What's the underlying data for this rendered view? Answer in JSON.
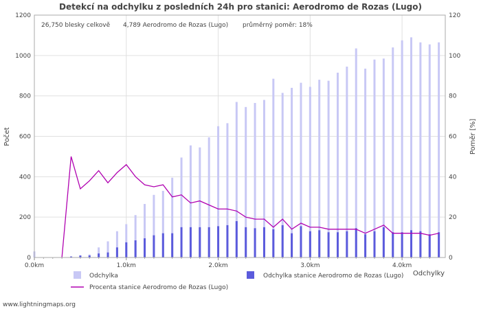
{
  "chart_data": {
    "type": "bar+line",
    "title": "Detekcí na odchylku z posledních 24h pro stanici: Aerodromo de Rozas (Lugo)",
    "info": {
      "total": "26,750 blesky celkově",
      "station": "4,789 Aerodromo de Rozas (Lugo)",
      "ratio": "průměrný poměr: 18%"
    },
    "ylabel_left": "Počet",
    "ylabel_right": "Poměr [%]",
    "xlabel": "Odchylky",
    "ylim_left": [
      0,
      1200
    ],
    "ylim_right": [
      0,
      120
    ],
    "yticks_left": [
      0,
      200,
      400,
      600,
      800,
      1000,
      1200
    ],
    "yticks_right": [
      0,
      20,
      40,
      60,
      80,
      100,
      120
    ],
    "xticks": [
      {
        "km": 0.0,
        "label": "0.0km"
      },
      {
        "km": 1.0,
        "label": "1.0km"
      },
      {
        "km": 2.0,
        "label": "2.0km"
      },
      {
        "km": 3.0,
        "label": "3.0km"
      },
      {
        "km": 4.0,
        "label": "4.0km"
      }
    ],
    "x_km": [
      0.0,
      0.1,
      0.2,
      0.3,
      0.4,
      0.5,
      0.6,
      0.7,
      0.8,
      0.9,
      1.0,
      1.1,
      1.2,
      1.3,
      1.4,
      1.5,
      1.6,
      1.7,
      1.8,
      1.9,
      2.0,
      2.1,
      2.2,
      2.3,
      2.4,
      2.5,
      2.6,
      2.7,
      2.8,
      2.9,
      3.0,
      3.1,
      3.2,
      3.3,
      3.4,
      3.5,
      3.6,
      3.7,
      3.8,
      3.9,
      4.0,
      4.1,
      4.2,
      4.3,
      4.4
    ],
    "series": [
      {
        "name": "Odchylka",
        "color": "#c8c8f5",
        "values": [
          30,
          0,
          0,
          0,
          5,
          10,
          15,
          50,
          80,
          130,
          165,
          210,
          265,
          310,
          330,
          395,
          495,
          555,
          545,
          595,
          650,
          665,
          770,
          745,
          765,
          780,
          885,
          815,
          840,
          865,
          845,
          880,
          875,
          915,
          945,
          1035,
          935,
          980,
          985,
          1040,
          1075,
          1090,
          1065,
          1055,
          1065
        ]
      },
      {
        "name": "Odchylka stanice Aerodromo de Rozas (Lugo)",
        "color": "#5b5bdc",
        "values": [
          0,
          0,
          0,
          0,
          5,
          10,
          10,
          20,
          25,
          50,
          75,
          85,
          95,
          110,
          120,
          120,
          150,
          150,
          150,
          150,
          155,
          160,
          180,
          150,
          145,
          150,
          140,
          160,
          120,
          155,
          130,
          135,
          125,
          125,
          130,
          145,
          115,
          130,
          150,
          125,
          125,
          135,
          130,
          115,
          125
        ]
      },
      {
        "name": "Procenta stanice Aerodromo de Rozas (Lugo)",
        "color": "#b000b0",
        "values": [
          null,
          null,
          null,
          0,
          50,
          34,
          38,
          43,
          37,
          42,
          46,
          40,
          36,
          35,
          36,
          30,
          31,
          27,
          28,
          26,
          24,
          24,
          23,
          20,
          19,
          19,
          15,
          19,
          14,
          17,
          15,
          15,
          14,
          14,
          14,
          14,
          12,
          14,
          16,
          12,
          12,
          12,
          12,
          11,
          12
        ]
      }
    ],
    "legend": [
      {
        "label": "Odchylka",
        "kind": "swatch",
        "color": "#c8c8f5"
      },
      {
        "label": "Odchylka stanice Aerodromo de Rozas (Lugo)",
        "kind": "swatch",
        "color": "#5b5bdc"
      },
      {
        "label": "Procenta stanice Aerodromo de Rozas (Lugo)",
        "kind": "line",
        "color": "#b000b0"
      }
    ]
  },
  "footer": "www.lightningmaps.org"
}
